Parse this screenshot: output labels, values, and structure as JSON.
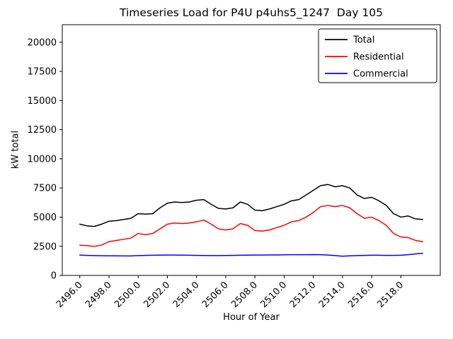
{
  "chart_data": {
    "type": "line",
    "title": "Timeseries Load for P4U p4uhs5_1247  Day 105",
    "xlabel": "Hour of Year",
    "ylabel": "kW total",
    "xlim": [
      2494.8,
      2520.7
    ],
    "ylim": [
      0,
      21500
    ],
    "grid": false,
    "legend_position": "upper right",
    "xticks": [
      2496,
      2498,
      2500,
      2502,
      2504,
      2506,
      2508,
      2510,
      2512,
      2514,
      2516,
      2518
    ],
    "xtick_labels": [
      "2496.0",
      "2498.0",
      "2500.0",
      "2502.0",
      "2504.0",
      "2506.0",
      "2508.0",
      "2510.0",
      "2512.0",
      "2514.0",
      "2516.0",
      "2518.0"
    ],
    "yticks": [
      0,
      2500,
      5000,
      7500,
      10000,
      12500,
      15000,
      17500,
      20000
    ],
    "ytick_labels": [
      "0",
      "2500",
      "5000",
      "7500",
      "10000",
      "12500",
      "15000",
      "17500",
      "20000"
    ],
    "x": [
      2496.0,
      2496.5,
      2497.0,
      2497.5,
      2498.0,
      2498.5,
      2499.0,
      2499.5,
      2500.0,
      2500.5,
      2501.0,
      2501.5,
      2502.0,
      2502.5,
      2503.0,
      2503.5,
      2504.0,
      2504.5,
      2505.0,
      2505.5,
      2506.0,
      2506.5,
      2507.0,
      2507.5,
      2508.0,
      2508.5,
      2509.0,
      2509.5,
      2510.0,
      2510.5,
      2511.0,
      2511.5,
      2512.0,
      2512.5,
      2513.0,
      2513.5,
      2514.0,
      2514.5,
      2515.0,
      2515.5,
      2516.0,
      2516.5,
      2517.0,
      2517.5,
      2518.0,
      2518.5,
      2519.0,
      2519.5
    ],
    "series": [
      {
        "name": "Total",
        "color": "#000000",
        "values": [
          4400,
          4250,
          4200,
          4400,
          4650,
          4700,
          4800,
          4900,
          5300,
          5250,
          5300,
          5800,
          6200,
          6300,
          6250,
          6300,
          6450,
          6500,
          6100,
          5750,
          5700,
          5800,
          6300,
          6100,
          5600,
          5550,
          5700,
          5900,
          6100,
          6400,
          6500,
          6900,
          7300,
          7700,
          7800,
          7600,
          7700,
          7500,
          6900,
          6600,
          6700,
          6400,
          6000,
          5300,
          5000,
          5100,
          4850,
          4800
        ]
      },
      {
        "name": "Residential",
        "color": "#ff0000",
        "values": [
          2600,
          2550,
          2500,
          2600,
          2900,
          3000,
          3100,
          3200,
          3600,
          3500,
          3600,
          4000,
          4400,
          4500,
          4450,
          4500,
          4600,
          4750,
          4400,
          4000,
          3900,
          4000,
          4450,
          4300,
          3850,
          3800,
          3900,
          4100,
          4300,
          4600,
          4700,
          5000,
          5400,
          5900,
          6000,
          5900,
          6000,
          5800,
          5300,
          4900,
          5000,
          4700,
          4300,
          3600,
          3300,
          3250,
          3000,
          2900
        ]
      },
      {
        "name": "Commercial",
        "color": "#0000ff",
        "values": [
          1750,
          1720,
          1700,
          1690,
          1680,
          1680,
          1670,
          1670,
          1700,
          1720,
          1730,
          1740,
          1750,
          1750,
          1740,
          1730,
          1720,
          1710,
          1700,
          1700,
          1710,
          1720,
          1730,
          1740,
          1750,
          1750,
          1760,
          1760,
          1770,
          1780,
          1780,
          1780,
          1790,
          1780,
          1750,
          1700,
          1650,
          1680,
          1700,
          1720,
          1730,
          1730,
          1720,
          1720,
          1730,
          1780,
          1850,
          1900
        ]
      }
    ]
  }
}
